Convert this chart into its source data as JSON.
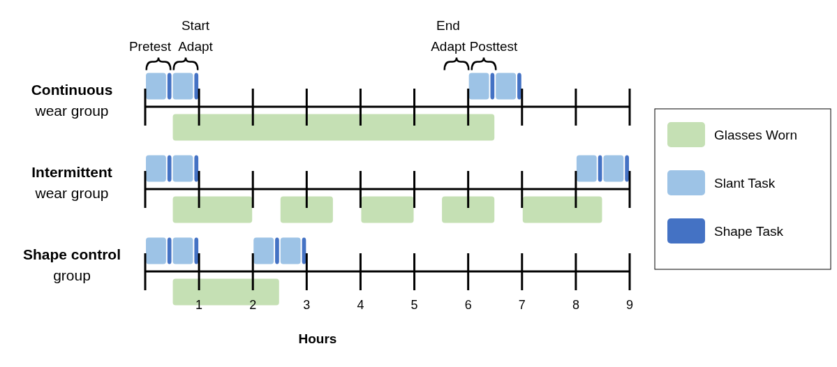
{
  "chart_data": {
    "type": "bar",
    "orientation": "horizontal",
    "categories": [
      "Continuous\nwear group",
      null,
      "Intermittent\nwear group",
      null,
      "Shape control\ngroup",
      null
    ],
    "xlim": [
      0,
      9
    ],
    "xticks": [
      1,
      2,
      3,
      4,
      5,
      6,
      7,
      8,
      9
    ],
    "xlabel": "Hours",
    "legend": "right",
    "annotations": [
      "Pretest",
      "Start\nAdapt",
      "End\nAdapt",
      "Posttest"
    ],
    "series": [
      {
        "name": "Glasses Worn",
        "color": "#c5e0b4",
        "values": [
          null,
          6,
          null,
          1.5,
          null,
          2
        ],
        "base": [
          null,
          0.5,
          null,
          0.5,
          null,
          0.5
        ]
      },
      {
        "name": "Slant Task",
        "color": "#9dc3e6",
        "values": [
          0.4,
          null,
          0.4,
          null,
          0.4,
          null
        ],
        "base": [
          0,
          null,
          0,
          null,
          0,
          null
        ]
      },
      {
        "name": "Shape Task",
        "color": "#4472c4",
        "values": [
          0.1,
          null,
          0.1,
          null,
          0.1,
          null
        ],
        "base": [
          0.4,
          null,
          0.4,
          null,
          0.4,
          null
        ]
      },
      {
        "color": "#9dc3e6",
        "values": [
          0.4,
          null,
          0.4,
          null,
          0.4,
          null
        ],
        "base": [
          0.5,
          null,
          0.5,
          null,
          0.5,
          null
        ]
      },
      {
        "color": "#4472c4",
        "values": [
          0.1,
          null,
          0.1,
          null,
          0.1,
          null
        ],
        "base": [
          0.9,
          null,
          0.9,
          null,
          0.9,
          null
        ]
      },
      {
        "color": "#9dc3e6",
        "values": [
          0.4,
          null,
          0.4,
          null,
          0.4,
          null
        ],
        "base": [
          6,
          null,
          8,
          null,
          2,
          null
        ]
      },
      {
        "color": "#4472c4",
        "values": [
          0.1,
          null,
          0.1,
          null,
          0.1,
          null
        ],
        "base": [
          6.4,
          null,
          8.4,
          null,
          2.4,
          null
        ]
      },
      {
        "color": "#9dc3e6",
        "values": [
          0.4,
          null,
          0.4,
          null,
          0.4,
          null
        ],
        "base": [
          6.5,
          null,
          8.5,
          null,
          2.5,
          null
        ]
      },
      {
        "color": "#4472c4",
        "values": [
          0.1,
          null,
          0.1,
          null,
          0.1,
          null
        ],
        "base": [
          6.9,
          null,
          8.9,
          null,
          2.9,
          null
        ]
      },
      {
        "color": "#c5e0b4",
        "values": [
          null,
          null,
          null,
          1,
          null,
          null
        ],
        "base": [
          null,
          null,
          null,
          2.5,
          null,
          null
        ]
      },
      {
        "color": "#c5e0b4",
        "values": [
          null,
          null,
          null,
          1,
          null,
          null
        ],
        "base": [
          null,
          null,
          null,
          4,
          null,
          null
        ]
      },
      {
        "color": "#c5e0b4",
        "values": [
          null,
          null,
          null,
          1,
          null,
          null
        ],
        "base": [
          null,
          null,
          null,
          5.5,
          null,
          null
        ]
      },
      {
        "color": "#c5e0b4",
        "values": [
          null,
          null,
          null,
          1.5,
          null,
          null
        ],
        "base": [
          null,
          null,
          null,
          7,
          null,
          null
        ]
      }
    ]
  }
}
